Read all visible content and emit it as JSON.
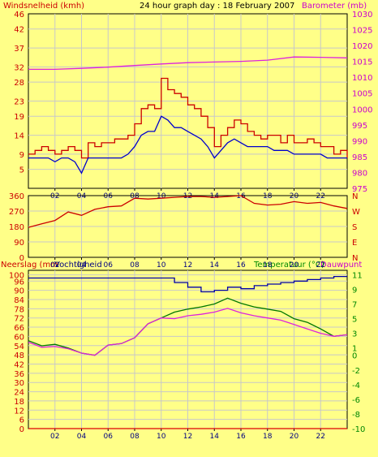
{
  "header": {
    "left_label": "Windsnelheid (kmh)",
    "title": "24 hour graph day : 18 February 2007",
    "right_label": "Barometer (mb)"
  },
  "lower_header": {
    "left_label_1": "Neerslag (mm",
    "left_label_2": "Vochtigheid",
    "right_label_1": "Temperatuur (°C)",
    "right_label_2": "Dauwpunt"
  },
  "colors": {
    "background": "#ffff88",
    "wind_gust": "#cc0000",
    "wind_avg": "#0000cc",
    "barometer": "#dd22dd",
    "direction": "#cc0000",
    "humidity": "#0000aa",
    "temperature": "#007700",
    "dewpoint": "#dd22dd",
    "rain": "#dd0000",
    "grid": "#c8c8c8",
    "axis_text_red": "#cc0000",
    "axis_text_magenta": "#cc00cc",
    "axis_text_green": "#008800"
  },
  "chart_data": [
    {
      "type": "line",
      "title": "24 hour graph day : 18 February 2007",
      "x_ticks": [
        "02",
        "04",
        "06",
        "08",
        "10",
        "12",
        "14",
        "16",
        "18",
        "20",
        "22"
      ],
      "xlim": [
        0,
        24
      ],
      "y_left_label": "Windsnelheid (kmh)",
      "y_left_ticks": [
        5,
        9,
        14,
        19,
        23,
        28,
        32,
        37,
        42,
        46
      ],
      "y_left_lim": [
        0,
        46
      ],
      "y_right_label": "Barometer (mb)",
      "y_right_ticks": [
        975,
        980,
        985,
        990,
        995,
        1000,
        1005,
        1010,
        1015,
        1020,
        1025,
        1030
      ],
      "y_right_lim": [
        975,
        1030
      ],
      "series": [
        {
          "role": "wind_gust",
          "axis": "left",
          "step": true,
          "x": [
            0,
            0.5,
            1,
            1.5,
            2,
            2.5,
            3,
            3.5,
            4,
            4.5,
            5,
            5.5,
            6,
            6.5,
            7,
            7.5,
            8,
            8.5,
            9,
            9.5,
            10,
            10.5,
            11,
            11.5,
            12,
            12.5,
            13,
            13.5,
            14,
            14.5,
            15,
            15.5,
            16,
            16.5,
            17,
            17.5,
            18,
            18.5,
            19,
            19.5,
            20,
            20.5,
            21,
            21.5,
            22,
            22.5,
            23,
            23.5,
            24
          ],
          "y": [
            9,
            10,
            11,
            10,
            9,
            10,
            11,
            10,
            8,
            12,
            11,
            12,
            12,
            13,
            13,
            14,
            17,
            21,
            22,
            21,
            29,
            26,
            25,
            24,
            22,
            21,
            19,
            16,
            11,
            14,
            16,
            18,
            17,
            15,
            14,
            13,
            14,
            14,
            12,
            14,
            12,
            12,
            13,
            12,
            11,
            11,
            9,
            10,
            8
          ]
        },
        {
          "role": "wind_avg",
          "axis": "left",
          "x": [
            0,
            0.5,
            1,
            1.5,
            2,
            2.5,
            3,
            3.5,
            4,
            4.5,
            5,
            5.5,
            6,
            6.5,
            7,
            7.5,
            8,
            8.5,
            9,
            9.5,
            10,
            10.5,
            11,
            11.5,
            12,
            12.5,
            13,
            13.5,
            14,
            14.5,
            15,
            15.5,
            16,
            16.5,
            17,
            17.5,
            18,
            18.5,
            19,
            19.5,
            20,
            20.5,
            21,
            21.5,
            22,
            22.5,
            23,
            23.5,
            24
          ],
          "y": [
            8,
            8,
            8,
            8,
            7,
            8,
            8,
            7,
            4,
            8,
            8,
            8,
            8,
            8,
            8,
            9,
            11,
            14,
            15,
            15,
            19,
            18,
            16,
            16,
            15,
            14,
            13,
            11,
            8,
            10,
            12,
            13,
            12,
            11,
            11,
            11,
            11,
            10,
            10,
            10,
            9,
            9,
            9,
            9,
            9,
            8,
            8,
            8,
            8
          ]
        },
        {
          "role": "barometer",
          "axis": "right",
          "x": [
            0,
            2,
            4,
            6,
            8,
            10,
            12,
            14,
            16,
            18,
            20,
            22,
            24
          ],
          "y": [
            1012.5,
            1012.5,
            1012.8,
            1013.2,
            1013.7,
            1014.2,
            1014.6,
            1014.8,
            1015.0,
            1015.4,
            1016.4,
            1016.3,
            1016.1
          ]
        }
      ]
    },
    {
      "type": "line",
      "x_ticks": [
        "02",
        "04",
        "06",
        "08",
        "10",
        "12",
        "14",
        "16",
        "18",
        "20",
        "22"
      ],
      "xlim": [
        0,
        24
      ],
      "y_left_ticks": [
        0,
        90,
        180,
        270,
        360
      ],
      "y_left_lim": [
        0,
        360
      ],
      "y_right_ticks": [
        "N",
        "W",
        "S",
        "E",
        "N"
      ],
      "series": [
        {
          "role": "wind_direction",
          "x": [
            0,
            1,
            2,
            3,
            4,
            5,
            6,
            7,
            8,
            9,
            10,
            11,
            12,
            13,
            14,
            15,
            16,
            17,
            18,
            19,
            20,
            21,
            22,
            23,
            24
          ],
          "y": [
            175,
            195,
            215,
            265,
            245,
            280,
            295,
            300,
            345,
            340,
            345,
            350,
            355,
            355,
            350,
            355,
            360,
            315,
            305,
            310,
            325,
            315,
            320,
            300,
            285
          ]
        }
      ]
    },
    {
      "type": "line",
      "x_ticks": [
        "02",
        "04",
        "06",
        "08",
        "10",
        "12",
        "14",
        "16",
        "18",
        "20",
        "22"
      ],
      "xlim": [
        0,
        24
      ],
      "y_left_label": "Vochtigheid",
      "y_left_ticks": [
        0,
        6,
        12,
        18,
        24,
        30,
        36,
        42,
        48,
        54,
        60,
        66,
        72,
        78,
        84,
        90,
        96,
        100
      ],
      "y_left_lim": [
        0,
        103
      ],
      "y_right_label": "Temperatuur (°C)",
      "y_right_ticks": [
        -10,
        -8,
        -6,
        -4,
        -2,
        0,
        1,
        3,
        5,
        7,
        9,
        11
      ],
      "y_right_lim": [
        -10,
        11.6
      ],
      "series": [
        {
          "role": "humidity",
          "axis": "left",
          "x": [
            0,
            2,
            4,
            6,
            8,
            10,
            11,
            12,
            13,
            14,
            15,
            16,
            17,
            18,
            19,
            20,
            21,
            22,
            23,
            24
          ],
          "y": [
            98,
            98,
            98,
            98,
            98,
            98,
            95,
            92,
            89,
            90,
            92,
            91,
            93,
            94,
            95,
            96,
            97,
            98,
            99,
            99
          ]
        },
        {
          "role": "temperature",
          "axis": "right",
          "x": [
            0,
            1,
            2,
            3,
            4,
            5,
            6,
            7,
            8,
            9,
            10,
            11,
            12,
            13,
            14,
            15,
            16,
            17,
            18,
            19,
            20,
            21,
            22,
            23,
            24
          ],
          "y": [
            2.0,
            1.3,
            1.5,
            1.0,
            0.3,
            0.0,
            1.4,
            1.6,
            2.4,
            4.3,
            5.1,
            5.9,
            6.3,
            6.6,
            7.0,
            7.8,
            7.1,
            6.6,
            6.3,
            6.0,
            5.0,
            4.5,
            3.6,
            2.6,
            2.8
          ]
        },
        {
          "role": "dewpoint",
          "axis": "right",
          "x": [
            0,
            1,
            2,
            3,
            4,
            5,
            6,
            7,
            8,
            9,
            10,
            11,
            12,
            13,
            14,
            15,
            16,
            17,
            18,
            19,
            20,
            21,
            22,
            23,
            24
          ],
          "y": [
            1.8,
            1.1,
            1.2,
            0.9,
            0.3,
            0.0,
            1.4,
            1.6,
            2.4,
            4.3,
            5.1,
            5.0,
            5.4,
            5.6,
            5.9,
            6.4,
            5.8,
            5.4,
            5.1,
            4.8,
            4.2,
            3.6,
            3.0,
            2.6,
            2.8
          ]
        },
        {
          "role": "rain",
          "axis": "left",
          "x": [
            0,
            24
          ],
          "y": [
            0,
            0
          ]
        }
      ]
    }
  ]
}
